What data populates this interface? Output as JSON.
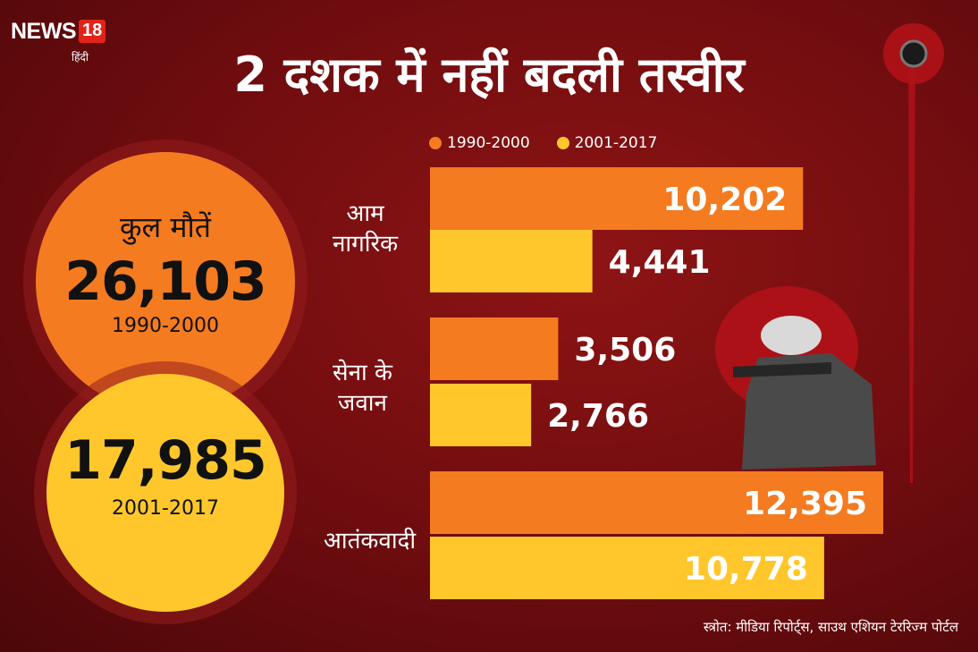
{
  "brand": {
    "name": "NEWS",
    "number": "18",
    "sub": "हिंदी"
  },
  "title": "2 दशक में नहीं बदली तस्वीर",
  "summary": [
    {
      "label": "कुल मौतें",
      "value": "26,103",
      "period": "1990-2000",
      "color": "#f47b20"
    },
    {
      "label": "",
      "value": "17,985",
      "period": "2001-2017",
      "color": "#ffc72c"
    }
  ],
  "source": "स्त्रोत: मीडिया रिपोर्ट्स, साउथ एशियन टेररिज्म पोर्टल",
  "chart_data": {
    "type": "bar",
    "orientation": "horizontal",
    "categories": [
      "आम नागरिक",
      "सेना के जवान",
      "आतंकवादी"
    ],
    "category_lines": [
      [
        "आम",
        "नागरिक"
      ],
      [
        "सेना के",
        "जवान"
      ],
      [
        "आतंकवादी"
      ]
    ],
    "series": [
      {
        "name": "1990-2000",
        "values": [
          10202,
          3506,
          12395
        ],
        "labels": [
          "10,202",
          "3,506",
          "12,395"
        ],
        "color": "#f47b20"
      },
      {
        "name": "2001-2017",
        "values": [
          4441,
          2766,
          10778
        ],
        "labels": [
          "4,441",
          "2,766",
          "10,778"
        ],
        "color": "#ffc72c"
      }
    ],
    "legend_position": "top",
    "grid": false
  }
}
